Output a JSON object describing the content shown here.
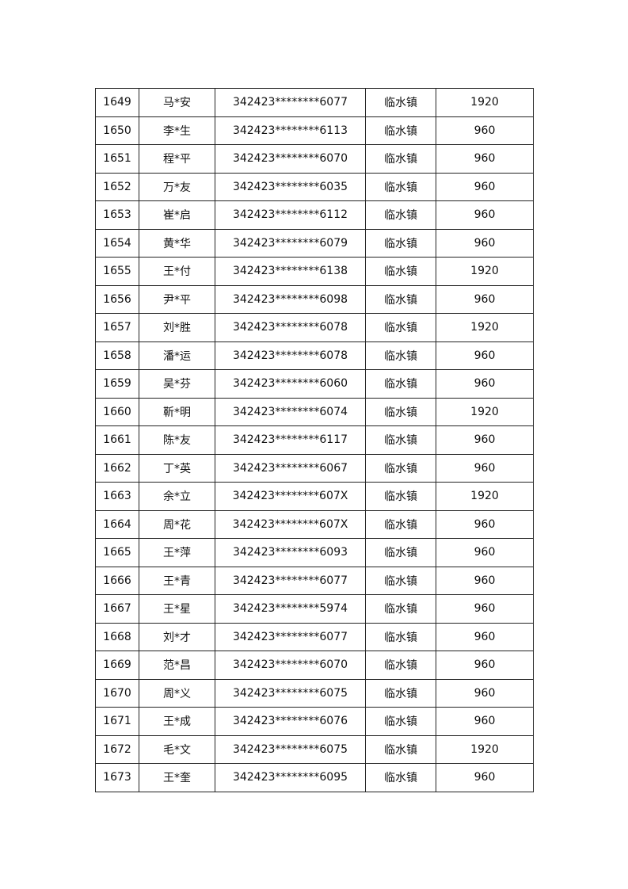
{
  "table": {
    "rows": [
      [
        "1649",
        "马*安",
        "342423********6077",
        "临水镇",
        "1920"
      ],
      [
        "1650",
        "李*生",
        "342423********6113",
        "临水镇",
        "960"
      ],
      [
        "1651",
        "程*平",
        "342423********6070",
        "临水镇",
        "960"
      ],
      [
        "1652",
        "万*友",
        "342423********6035",
        "临水镇",
        "960"
      ],
      [
        "1653",
        "崔*启",
        "342423********6112",
        "临水镇",
        "960"
      ],
      [
        "1654",
        "黄*华",
        "342423********6079",
        "临水镇",
        "960"
      ],
      [
        "1655",
        "王*付",
        "342423********6138",
        "临水镇",
        "1920"
      ],
      [
        "1656",
        "尹*平",
        "342423********6098",
        "临水镇",
        "960"
      ],
      [
        "1657",
        "刘*胜",
        "342423********6078",
        "临水镇",
        "1920"
      ],
      [
        "1658",
        "潘*运",
        "342423********6078",
        "临水镇",
        "960"
      ],
      [
        "1659",
        "吴*芬",
        "342423********6060",
        "临水镇",
        "960"
      ],
      [
        "1660",
        "靳*明",
        "342423********6074",
        "临水镇",
        "1920"
      ],
      [
        "1661",
        "陈*友",
        "342423********6117",
        "临水镇",
        "960"
      ],
      [
        "1662",
        "丁*英",
        "342423********6067",
        "临水镇",
        "960"
      ],
      [
        "1663",
        "余*立",
        "342423********607X",
        "临水镇",
        "1920"
      ],
      [
        "1664",
        "周*花",
        "342423********607X",
        "临水镇",
        "960"
      ],
      [
        "1665",
        "王*萍",
        "342423********6093",
        "临水镇",
        "960"
      ],
      [
        "1666",
        "王*青",
        "342423********6077",
        "临水镇",
        "960"
      ],
      [
        "1667",
        "王*星",
        "342423********5974",
        "临水镇",
        "960"
      ],
      [
        "1668",
        "刘*才",
        "342423********6077",
        "临水镇",
        "960"
      ],
      [
        "1669",
        "范*昌",
        "342423********6070",
        "临水镇",
        "960"
      ],
      [
        "1670",
        "周*义",
        "342423********6075",
        "临水镇",
        "960"
      ],
      [
        "1671",
        "王*成",
        "342423********6076",
        "临水镇",
        "960"
      ],
      [
        "1672",
        "毛*文",
        "342423********6075",
        "临水镇",
        "1920"
      ],
      [
        "1673",
        "王*奎",
        "342423********6095",
        "临水镇",
        "960"
      ]
    ]
  }
}
